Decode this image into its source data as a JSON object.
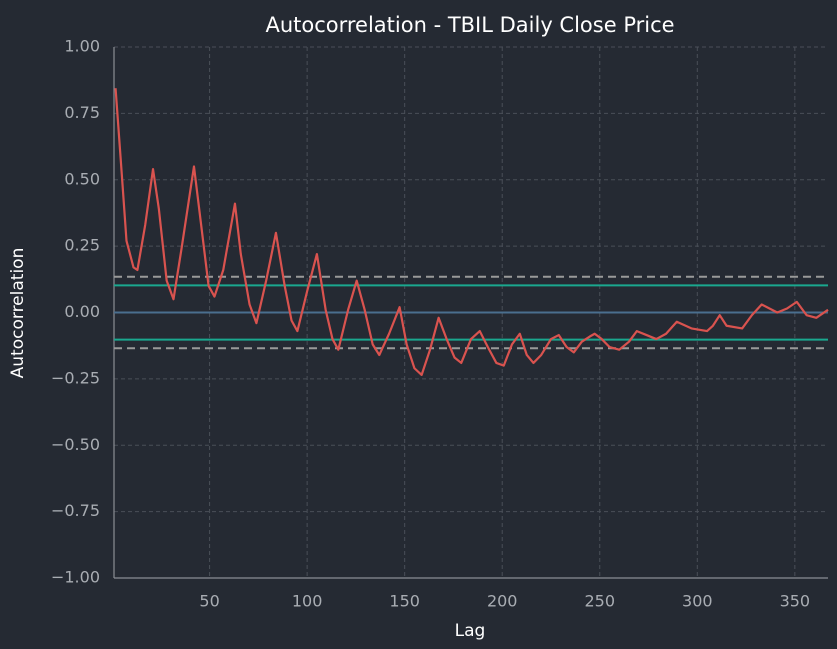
{
  "chart_data": {
    "type": "line",
    "title": "Autocorrelation - TBIL Daily Close Price",
    "xlabel": "Lag",
    "ylabel": "Autocorrelation",
    "xlim": [
      1,
      367
    ],
    "ylim": [
      -1,
      1
    ],
    "xticks": [
      50,
      100,
      150,
      200,
      250,
      300,
      350
    ],
    "yticks": [
      {
        "value": -1,
        "label": "−1.00"
      },
      {
        "value": -0.75,
        "label": "−0.75"
      },
      {
        "value": -0.5,
        "label": "−0.50"
      },
      {
        "value": -0.25,
        "label": "−0.25"
      },
      {
        "value": 0,
        "label": "0.00"
      },
      {
        "value": 0.25,
        "label": "0.25"
      },
      {
        "value": 0.5,
        "label": "0.50"
      },
      {
        "value": 0.75,
        "label": "0.75"
      },
      {
        "value": 1,
        "label": "1.00"
      }
    ],
    "grid": true,
    "reference_lines": [
      {
        "value": 0.1346,
        "color": "#9a9a9a",
        "dashed": true
      },
      {
        "value": 0.1024,
        "color": "#1aa88f",
        "dashed": false
      },
      {
        "value": 0,
        "color": "#4a6f8f",
        "dashed": false
      },
      {
        "value": -0.1024,
        "color": "#1aa88f",
        "dashed": false
      },
      {
        "value": -0.1346,
        "color": "#9a9a9a",
        "dashed": true
      }
    ],
    "x": [
      1.8,
      5,
      7.4,
      11,
      13,
      17,
      21,
      24,
      28,
      31.5,
      35.6,
      42,
      46,
      49.5,
      52.5,
      57,
      63,
      66,
      70.5,
      74,
      79,
      84,
      88.5,
      92,
      95,
      100,
      105,
      109.5,
      113,
      116,
      121,
      125.4,
      129.5,
      133.6,
      137,
      142,
      147.4,
      151,
      155,
      158.7,
      163,
      167.4,
      171.5,
      175.6,
      179,
      184,
      188.5,
      192.6,
      197,
      200.8,
      205,
      209,
      212.6,
      216,
      220,
      225,
      229,
      233,
      236.7,
      240.8,
      245,
      247.4,
      251,
      255,
      260,
      265,
      269,
      274,
      279,
      284,
      289.5,
      297,
      305,
      308,
      311.5,
      315,
      323,
      328,
      333,
      341,
      346,
      351,
      356,
      361,
      367
    ],
    "series": [
      {
        "color": "#d9534f",
        "values": [
          0.845,
          0.52,
          0.27,
          0.17,
          0.16,
          0.33,
          0.54,
          0.39,
          0.12,
          0.05,
          0.24,
          0.55,
          0.31,
          0.1,
          0.06,
          0.16,
          0.41,
          0.22,
          0.03,
          -0.04,
          0.12,
          0.3,
          0.1,
          -0.03,
          -0.07,
          0.08,
          0.22,
          0.01,
          -0.1,
          -0.14,
          0.01,
          0.12,
          0.01,
          -0.12,
          -0.16,
          -0.08,
          0.02,
          -0.12,
          -0.21,
          -0.235,
          -0.14,
          -0.02,
          -0.1,
          -0.17,
          -0.19,
          -0.1,
          -0.07,
          -0.13,
          -0.19,
          -0.2,
          -0.12,
          -0.08,
          -0.16,
          -0.19,
          -0.16,
          -0.1,
          -0.085,
          -0.13,
          -0.15,
          -0.11,
          -0.09,
          -0.08,
          -0.1,
          -0.13,
          -0.14,
          -0.11,
          -0.07,
          -0.085,
          -0.1,
          -0.08,
          -0.035,
          -0.06,
          -0.07,
          -0.05,
          -0.01,
          -0.05,
          -0.06,
          -0.01,
          0.03,
          0.0,
          0.015,
          0.04,
          -0.01,
          -0.02,
          0.01
        ]
      }
    ]
  }
}
